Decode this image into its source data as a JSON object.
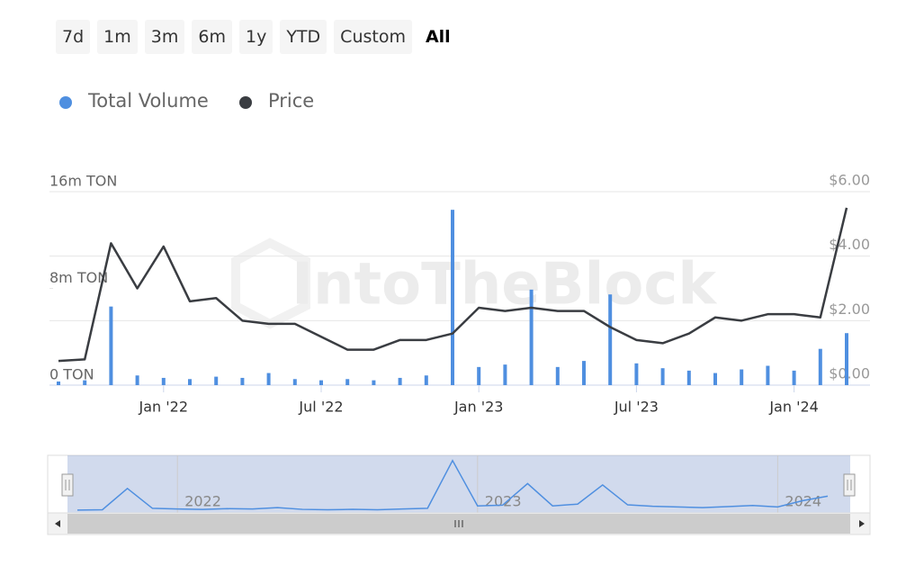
{
  "range_buttons": [
    "7d",
    "1m",
    "3m",
    "6m",
    "1y",
    "YTD",
    "Custom",
    "All"
  ],
  "selected_range": "All",
  "chart_data": {
    "type": "bar-line",
    "watermark": "IntoTheBlock",
    "x": [
      "2021-09",
      "2021-10",
      "2021-11",
      "2021-12",
      "2022-01",
      "2022-02",
      "2022-03",
      "2022-04",
      "2022-05",
      "2022-06",
      "2022-07",
      "2022-08",
      "2022-09",
      "2022-10",
      "2022-11",
      "2022-12",
      "2023-01",
      "2023-02",
      "2023-03",
      "2023-04",
      "2023-05",
      "2023-06",
      "2023-07",
      "2023-08",
      "2023-09",
      "2023-10",
      "2023-11",
      "2023-12",
      "2024-01",
      "2024-02",
      "2024-03"
    ],
    "series": [
      {
        "name": "Total Volume",
        "type": "bar",
        "color": "#4f8fe0",
        "axis": "y",
        "values": [
          300000,
          400000,
          6500000,
          800000,
          600000,
          500000,
          700000,
          600000,
          1000000,
          500000,
          400000,
          500000,
          400000,
          600000,
          800000,
          14500000,
          1500000,
          1700000,
          7900000,
          1500000,
          2000000,
          7500000,
          1800000,
          1400000,
          1200000,
          1000000,
          1300000,
          1600000,
          1200000,
          3000000,
          4300000
        ]
      },
      {
        "name": "Price",
        "type": "line",
        "color": "#3a3d42",
        "axis": "y2",
        "values": [
          0.75,
          0.8,
          4.4,
          3.0,
          4.3,
          2.6,
          2.7,
          2.0,
          1.9,
          1.9,
          1.5,
          1.1,
          1.1,
          1.4,
          1.4,
          1.6,
          2.4,
          2.3,
          2.4,
          2.3,
          2.3,
          1.8,
          1.4,
          1.3,
          1.6,
          2.1,
          2.0,
          2.2,
          2.2,
          2.1,
          5.5
        ]
      }
    ],
    "xticks": [
      {
        "value": "2022-01",
        "label": "Jan '22"
      },
      {
        "value": "2022-07",
        "label": "Jul '22"
      },
      {
        "value": "2023-01",
        "label": "Jan '23"
      },
      {
        "value": "2023-07",
        "label": "Jul '23"
      },
      {
        "value": "2024-01",
        "label": "Jan '24"
      }
    ],
    "ylim": [
      0,
      16000000
    ],
    "yticks": [
      {
        "value": 0,
        "label": "0 TON"
      },
      {
        "value": 8000000,
        "label": "8m TON"
      },
      {
        "value": 16000000,
        "label": "16m TON"
      }
    ],
    "y2lim": [
      0,
      6
    ],
    "y2ticks": [
      {
        "value": 0,
        "label": "$0.00"
      },
      {
        "value": 2,
        "label": "$2.00"
      },
      {
        "value": 4,
        "label": "$4.00"
      },
      {
        "value": 6,
        "label": "$6.00"
      }
    ],
    "grid": true,
    "navigator_ticks": [
      {
        "value": "2022-01",
        "label": "2022"
      },
      {
        "value": "2023-01",
        "label": "2023"
      },
      {
        "value": "2024-01",
        "label": "2024"
      }
    ]
  }
}
